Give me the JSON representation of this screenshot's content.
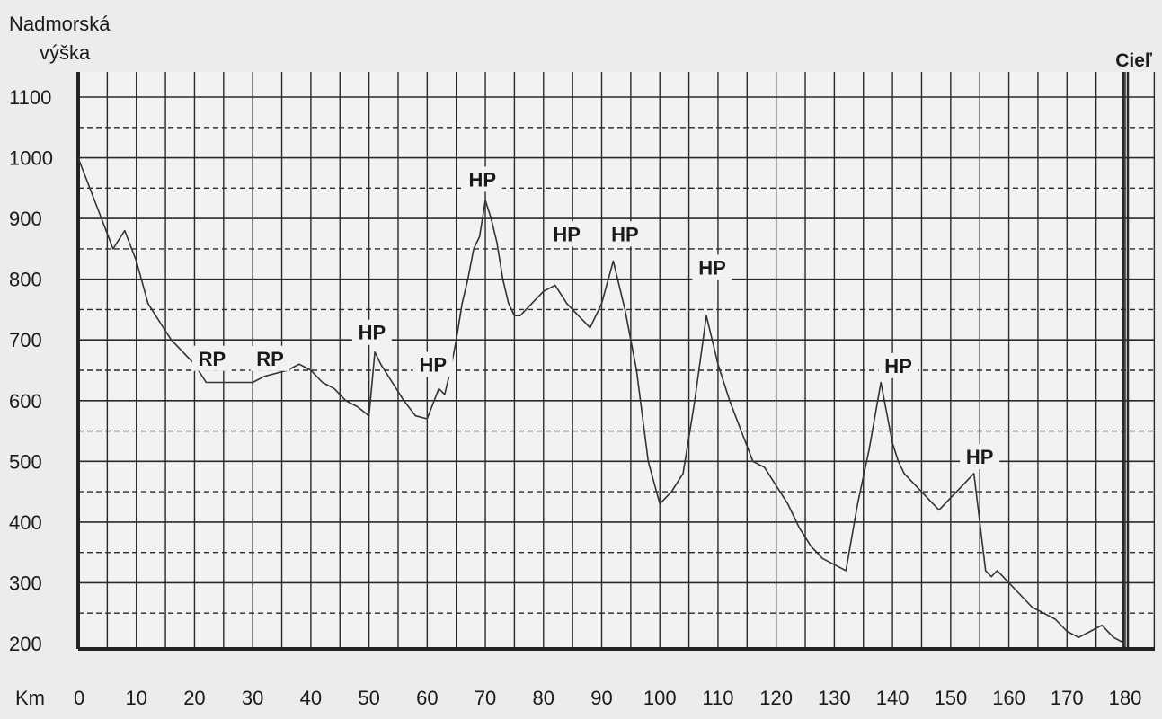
{
  "chart_data": {
    "type": "line",
    "ylabel_line1": "Nadmorská",
    "ylabel_line2": "výška",
    "xlabel": "Km",
    "finish_label": "Cieľ",
    "xlim": [
      0,
      180
    ],
    "ylim": [
      200,
      1100
    ],
    "x_ticks": [
      0,
      10,
      20,
      30,
      40,
      50,
      60,
      70,
      80,
      90,
      100,
      110,
      120,
      130,
      140,
      150,
      160,
      170,
      180
    ],
    "y_ticks": [
      200,
      300,
      400,
      500,
      600,
      700,
      800,
      900,
      1000,
      1100
    ],
    "grid": true,
    "series": [
      {
        "x": [
          0,
          4,
          6,
          8,
          10,
          12,
          14,
          16,
          18,
          20,
          22,
          24,
          26,
          28,
          30,
          32,
          34,
          36,
          38,
          40,
          42,
          44,
          46,
          48,
          50,
          51,
          52,
          54,
          56,
          58,
          60,
          62,
          63,
          64,
          65,
          66,
          67,
          68,
          69,
          70,
          71,
          72,
          73,
          74,
          75,
          76,
          78,
          80,
          82,
          84,
          86,
          88,
          90,
          92,
          94,
          96,
          98,
          100,
          102,
          104,
          106,
          108,
          110,
          112,
          114,
          116,
          118,
          120,
          122,
          124,
          126,
          128,
          130,
          132,
          134,
          136,
          138,
          140,
          141,
          142,
          144,
          146,
          148,
          150,
          152,
          154,
          156,
          157,
          158,
          160,
          162,
          164,
          166,
          168,
          170,
          172,
          174,
          176,
          178,
          180
        ],
        "y": [
          1000,
          900,
          850,
          880,
          830,
          760,
          730,
          700,
          680,
          660,
          630,
          630,
          630,
          630,
          630,
          640,
          645,
          650,
          660,
          650,
          630,
          620,
          600,
          590,
          575,
          680,
          660,
          630,
          600,
          575,
          570,
          620,
          610,
          650,
          700,
          760,
          800,
          850,
          870,
          930,
          900,
          860,
          800,
          760,
          740,
          740,
          760,
          780,
          790,
          760,
          740,
          720,
          760,
          830,
          750,
          650,
          500,
          430,
          450,
          480,
          600,
          740,
          660,
          600,
          550,
          500,
          490,
          460,
          430,
          390,
          360,
          340,
          330,
          320,
          430,
          520,
          630,
          530,
          500,
          480,
          460,
          440,
          420,
          440,
          460,
          480,
          320,
          310,
          320,
          300,
          280,
          260,
          250,
          240,
          220,
          210,
          220,
          230,
          210,
          200
        ]
      }
    ],
    "annotations": [
      {
        "text": "RP",
        "x": 23,
        "y": 640
      },
      {
        "text": "RP",
        "x": 33,
        "y": 640
      },
      {
        "text": "HP",
        "x": 50.5,
        "y": 683
      },
      {
        "text": "HP",
        "x": 61,
        "y": 630
      },
      {
        "text": "HP",
        "x": 69.5,
        "y": 935
      },
      {
        "text": "HP",
        "x": 84,
        "y": 845
      },
      {
        "text": "HP",
        "x": 94,
        "y": 845
      },
      {
        "text": "HP",
        "x": 109,
        "y": 790
      },
      {
        "text": "HP",
        "x": 141,
        "y": 628
      },
      {
        "text": "HP",
        "x": 155,
        "y": 478
      }
    ]
  }
}
